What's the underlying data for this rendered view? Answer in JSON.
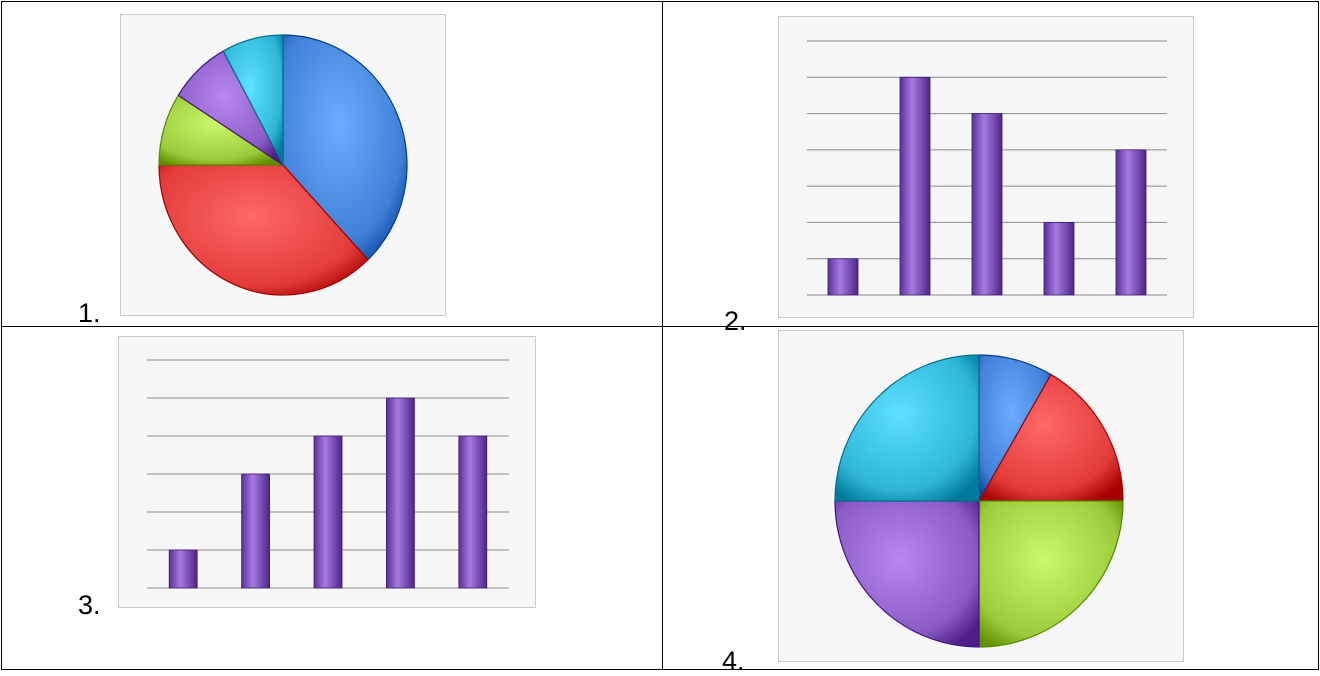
{
  "labels": {
    "c1": "1.",
    "c2": "2.",
    "c3": "3.",
    "c4": "4."
  },
  "colors": {
    "blue": "#3f7fd6",
    "red": "#e23b3a",
    "green": "#9ccc3b",
    "purple": "#8a5bc4",
    "cyan": "#2fb5d6",
    "bar": "#8855c8"
  },
  "chart_data": [
    {
      "type": "pie",
      "slices": [
        {
          "name": "",
          "value": 38,
          "color": "#3f7fd6"
        },
        {
          "name": "",
          "value": 37,
          "color": "#e23b3a"
        },
        {
          "name": "",
          "value": 9,
          "color": "#9ccc3b"
        },
        {
          "name": "",
          "value": 8,
          "color": "#8a5bc4"
        },
        {
          "name": "",
          "value": 8,
          "color": "#2fb5d6"
        }
      ]
    },
    {
      "type": "bar",
      "categories": [
        "",
        "",
        "",
        "",
        ""
      ],
      "values": [
        1,
        6,
        5,
        2,
        4
      ],
      "ylim": [
        0,
        7
      ],
      "grid": true
    },
    {
      "type": "bar",
      "categories": [
        "",
        "",
        "",
        "",
        ""
      ],
      "values": [
        1,
        3,
        4,
        5,
        4
      ],
      "ylim": [
        0,
        6
      ],
      "grid": true
    },
    {
      "type": "pie",
      "slices": [
        {
          "name": "",
          "value": 8.33,
          "color": "#3f7fd6"
        },
        {
          "name": "",
          "value": 16.67,
          "color": "#e23b3a"
        },
        {
          "name": "",
          "value": 25,
          "color": "#9ccc3b"
        },
        {
          "name": "",
          "value": 25,
          "color": "#8a5bc4"
        },
        {
          "name": "",
          "value": 25,
          "color": "#2fb5d6"
        }
      ]
    }
  ]
}
